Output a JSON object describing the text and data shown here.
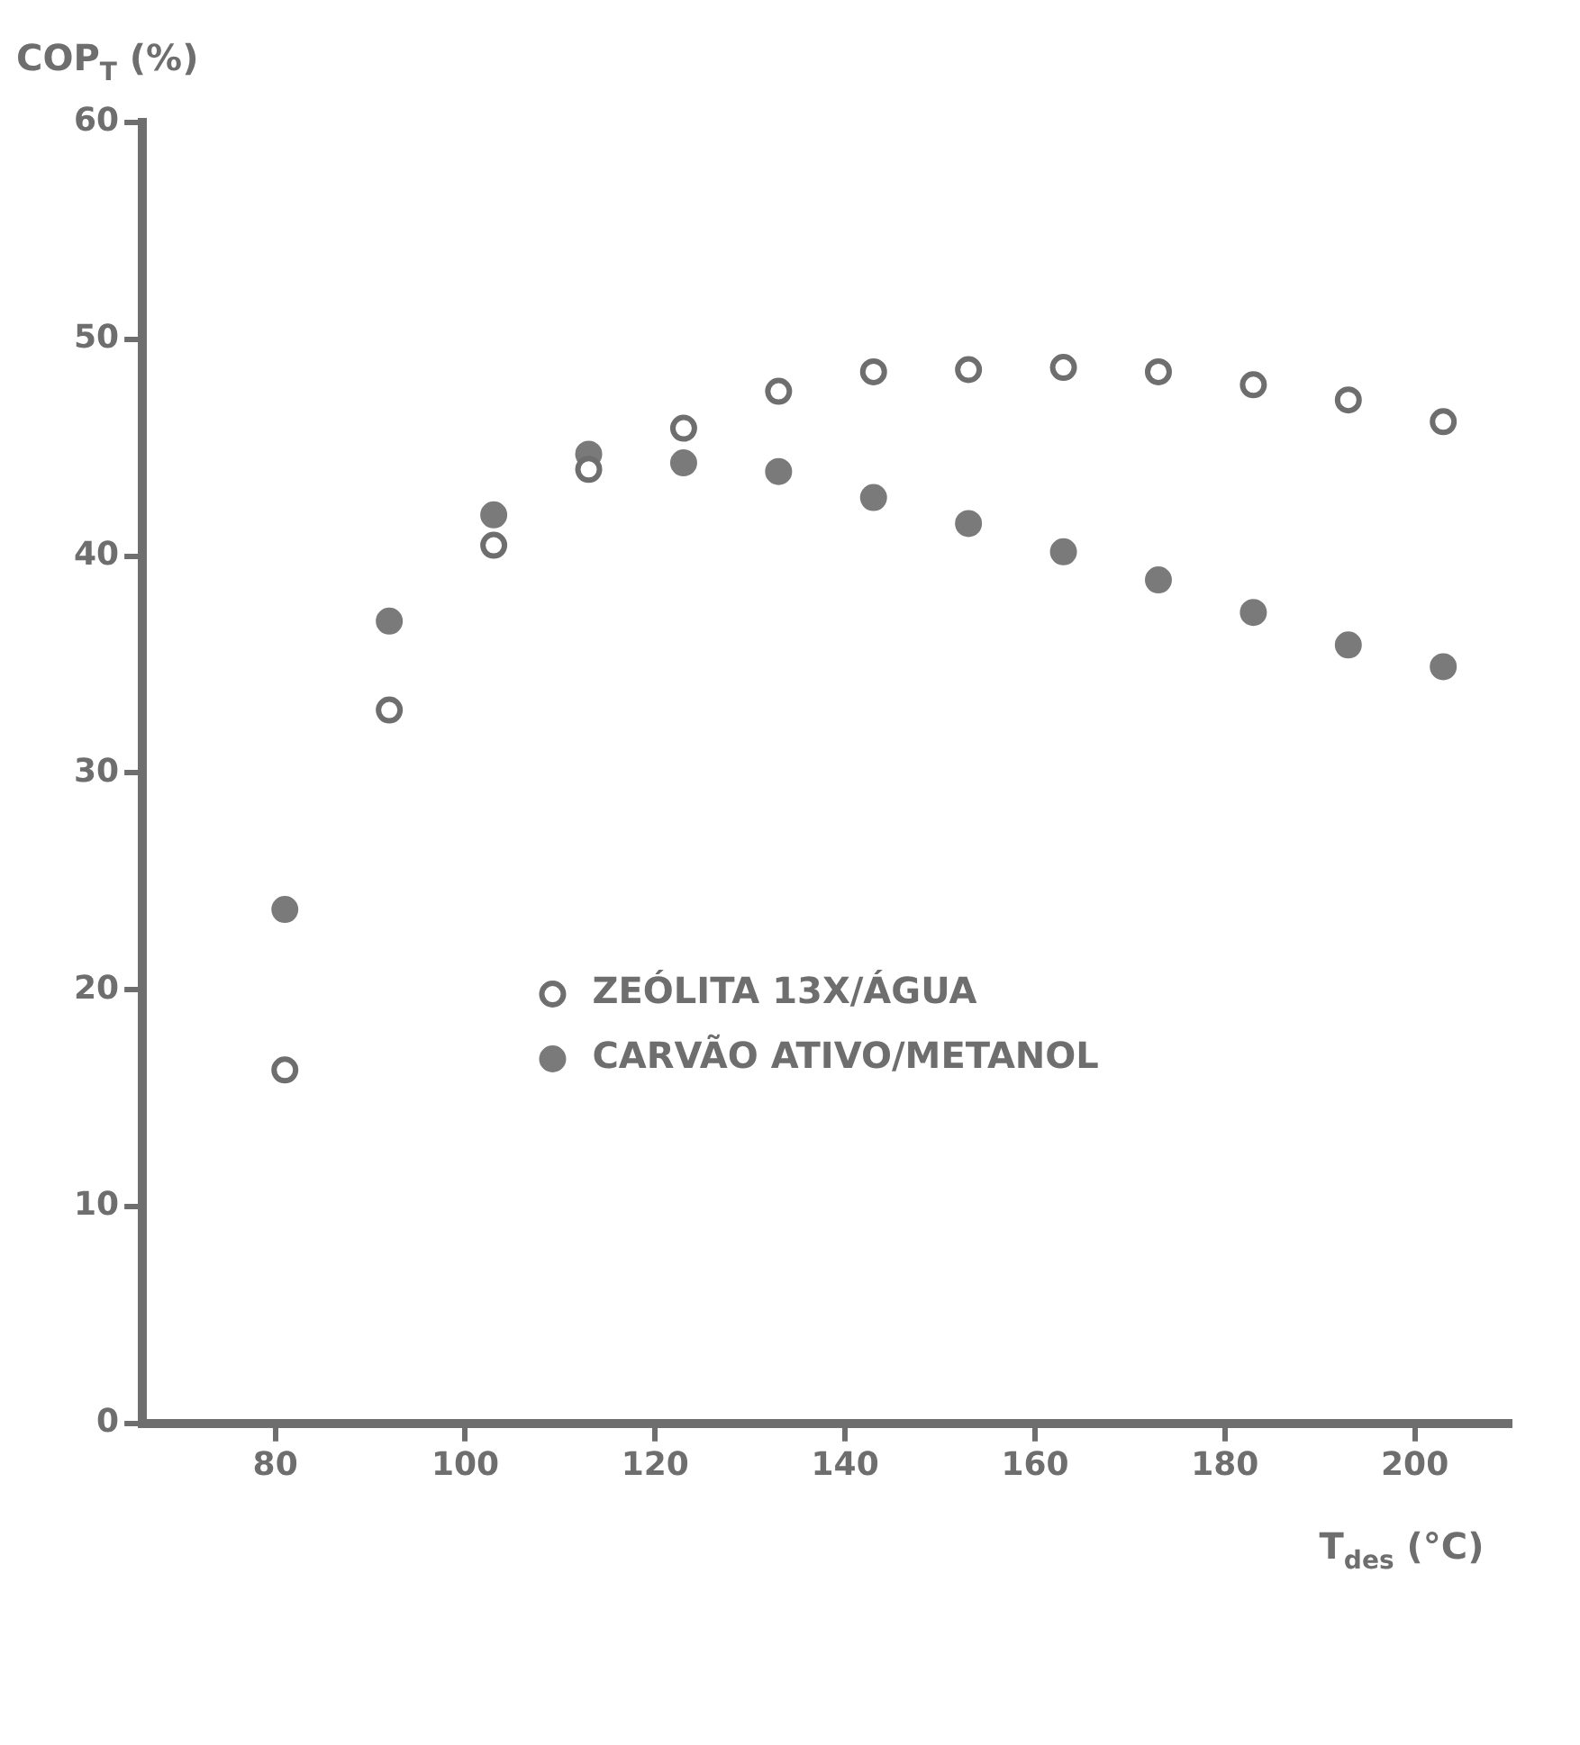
{
  "chart_data": {
    "type": "scatter",
    "xlabel": "T$_{des}$ (°C)",
    "ylabel": "COP$_{T}$ (%)",
    "xlim": [
      66,
      210
    ],
    "xticks": [
      80,
      100,
      120,
      140,
      160,
      180,
      200
    ],
    "ylim": [
      0,
      60
    ],
    "yticks": [
      0,
      10,
      20,
      30,
      40,
      50,
      60
    ],
    "grid": false,
    "legend": "bottom right",
    "marker": "circle",
    "series": [
      {
        "name": "ZEÓLITA 13X/ÁGUA",
        "color": "#ffffff",
        "x": [
          81,
          92,
          103,
          113,
          123,
          133,
          143,
          153,
          163,
          173,
          183,
          193,
          203
        ],
        "values": [
          16.3,
          32.9,
          40.5,
          44.0,
          45.9,
          47.6,
          48.5,
          48.6,
          48.7,
          48.5,
          47.9,
          47.2,
          46.2
        ]
      },
      {
        "name": "CARVÃO ATIVO/METANOL",
        "color": "#7a7a7a",
        "x": [
          81,
          92,
          103,
          113,
          123,
          133,
          143,
          153,
          163,
          173,
          183,
          193,
          203
        ],
        "values": [
          23.7,
          37.0,
          41.9,
          44.7,
          44.3,
          43.9,
          42.7,
          41.5,
          40.2,
          38.9,
          37.4,
          35.9,
          34.9
        ]
      }
    ]
  }
}
